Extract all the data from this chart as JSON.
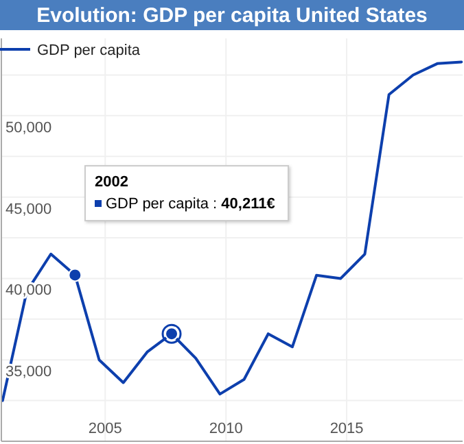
{
  "chart_data": {
    "type": "line",
    "title": "Evolution: GDP per capita United States",
    "x": [
      2000.75,
      2001.75,
      2002.75,
      2003.75,
      2004.75,
      2005.75,
      2006.75,
      2007.75,
      2008.75,
      2009.75,
      2010.75,
      2011.75,
      2012.75,
      2013.75,
      2014.75,
      2015.75,
      2016.75,
      2017.75,
      2018.75,
      2019.75
    ],
    "series": [
      {
        "name": "GDP per capita",
        "color": "#0d3fad",
        "values": [
          32500,
          39200,
          41500,
          40211,
          35000,
          33600,
          35500,
          36600,
          35100,
          32900,
          33800,
          36600,
          35800,
          40200,
          40000,
          41500,
          51300,
          52500,
          53200,
          53300
        ]
      },
      {
        "type": "scatter",
        "marker": "circle",
        "color": "#0d3fad",
        "x": [
          2003.75,
          2007.75
        ],
        "values": [
          40211,
          36600
        ]
      }
    ],
    "xlim": [
      2000.7,
      2019.8
    ],
    "xticks": [
      2005,
      2010,
      2015
    ],
    "ylim": [
      30000,
      54750
    ],
    "yticks": [
      {
        "value": 32500,
        "label": null
      },
      {
        "value": 35000,
        "label": "35,000"
      },
      {
        "value": 37500,
        "label": null
      },
      {
        "value": 40000,
        "label": "40,000"
      },
      {
        "value": 42500,
        "label": null
      },
      {
        "value": 45000,
        "label": "45,000"
      },
      {
        "value": 47500,
        "label": null
      },
      {
        "value": 50000,
        "label": "50,000"
      },
      {
        "value": 52500,
        "label": null
      }
    ],
    "grid": true,
    "legend": "top left",
    "marker": "none",
    "line_style": "solid",
    "annotations": [
      "2002\nGDP per capita : 40,211€"
    ]
  }
}
